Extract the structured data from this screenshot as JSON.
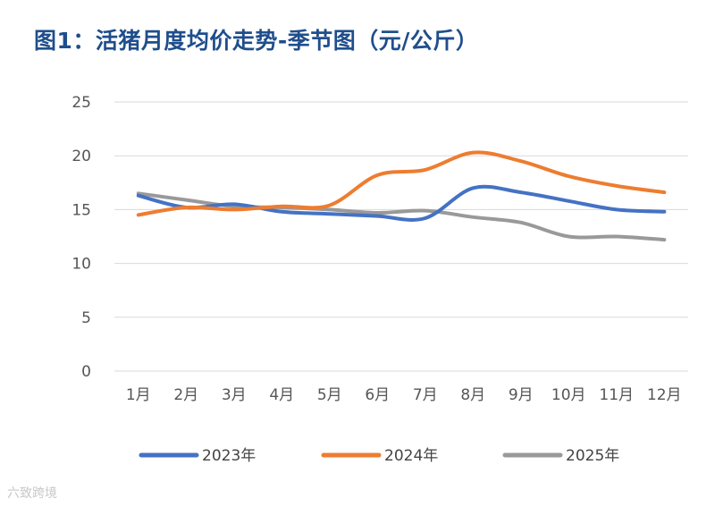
{
  "chart_data": {
    "type": "line",
    "title": "图1：活猪月度均价走势-季节图（元/公斤）",
    "categories": [
      "1月",
      "2月",
      "3月",
      "4月",
      "5月",
      "6月",
      "7月",
      "8月",
      "9月",
      "10月",
      "11月",
      "12月"
    ],
    "ylim": [
      0,
      25
    ],
    "yticks": [
      0,
      5,
      10,
      15,
      20,
      25
    ],
    "grid": true,
    "legend_position": "bottom",
    "series": [
      {
        "name": "2023年",
        "color": "#4472c4",
        "values": [
          16.3,
          15.2,
          15.5,
          14.8,
          14.6,
          14.4,
          14.2,
          17.0,
          16.6,
          15.8,
          15.0,
          14.8
        ]
      },
      {
        "name": "2024年",
        "color": "#ed7d31",
        "values": [
          14.5,
          15.2,
          15.0,
          15.3,
          15.4,
          18.2,
          18.7,
          20.3,
          19.5,
          18.1,
          17.2,
          16.6
        ]
      },
      {
        "name": "2025年",
        "color": "#999999",
        "values": [
          16.5,
          15.9,
          15.3,
          15.2,
          15.0,
          14.7,
          14.9,
          14.3,
          13.8,
          12.5,
          12.5,
          12.2
        ]
      }
    ]
  },
  "watermark": "六致跨境"
}
